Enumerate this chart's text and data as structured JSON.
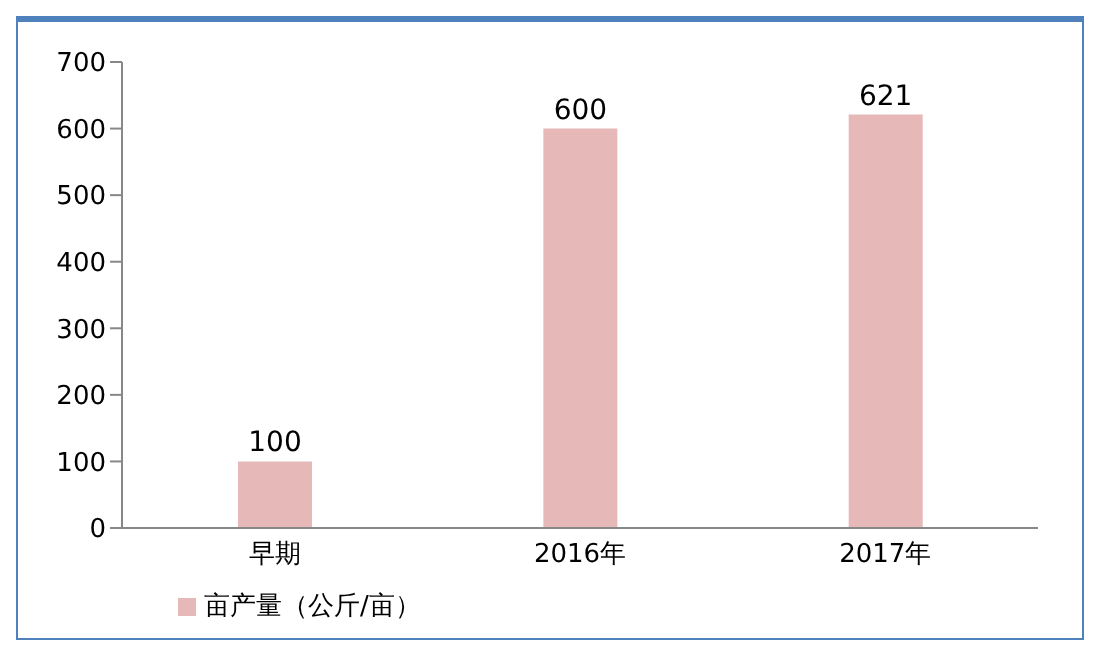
{
  "chart_data": {
    "type": "bar",
    "categories": [
      "早期",
      "2016年",
      "2017年"
    ],
    "series": [
      {
        "name": "亩产量（公斤/亩）",
        "color": "#e6b8b7",
        "values": [
          100,
          600,
          621
        ]
      }
    ],
    "ylim": [
      0,
      700
    ],
    "yticks": [
      0,
      100,
      200,
      300,
      400,
      500,
      600,
      700
    ],
    "grid": false,
    "legend": "bottom left",
    "data_labels": true
  }
}
